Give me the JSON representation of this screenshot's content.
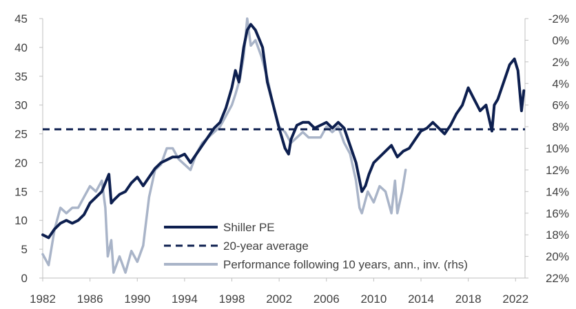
{
  "chart_data": {
    "type": "line",
    "title": "",
    "xlabel": "",
    "ylabel": "",
    "y2label": "",
    "xlim": [
      1982,
      2022.8
    ],
    "ylim": [
      0,
      45
    ],
    "y2lim": [
      -2,
      22
    ],
    "y2_inverted": true,
    "x_ticks": [
      "1982",
      "1986",
      "1990",
      "1994",
      "1998",
      "2002",
      "2006",
      "2010",
      "2014",
      "2018",
      "2022"
    ],
    "y_ticks": [
      "0",
      "5",
      "10",
      "15",
      "20",
      "25",
      "30",
      "35",
      "40",
      "45"
    ],
    "y2_ticks": [
      "-2%",
      "0%",
      "2%",
      "4%",
      "6%",
      "8%",
      "10%",
      "12%",
      "14%",
      "16%",
      "18%",
      "20%",
      "22%"
    ],
    "grid": false,
    "legend_position": "bottom-center",
    "series": [
      {
        "name": "Shiller PE",
        "axis": "left",
        "style": "solid",
        "color": "#0d1f4f",
        "x": [
          1982.0,
          1982.5,
          1983.0,
          1983.5,
          1984.0,
          1984.5,
          1985.0,
          1985.5,
          1986.0,
          1986.5,
          1987.0,
          1987.3,
          1987.6,
          1987.8,
          1988.0,
          1988.5,
          1989.0,
          1989.5,
          1990.0,
          1990.5,
          1991.0,
          1991.5,
          1992.0,
          1992.5,
          1993.0,
          1993.5,
          1994.0,
          1994.5,
          1995.0,
          1995.5,
          1996.0,
          1996.5,
          1997.0,
          1997.5,
          1998.0,
          1998.3,
          1998.6,
          1999.0,
          1999.3,
          1999.6,
          2000.0,
          2000.3,
          2000.6,
          2001.0,
          2001.5,
          2002.0,
          2002.5,
          2002.8,
          2003.0,
          2003.5,
          2004.0,
          2004.5,
          2005.0,
          2005.5,
          2006.0,
          2006.5,
          2007.0,
          2007.5,
          2008.0,
          2008.5,
          2009.0,
          2009.3,
          2009.6,
          2010.0,
          2010.5,
          2011.0,
          2011.5,
          2012.0,
          2012.5,
          2013.0,
          2013.5,
          2014.0,
          2014.5,
          2015.0,
          2015.5,
          2016.0,
          2016.5,
          2017.0,
          2017.5,
          2018.0,
          2018.5,
          2019.0,
          2019.5,
          2020.0,
          2020.2,
          2020.5,
          2021.0,
          2021.5,
          2021.9,
          2022.2,
          2022.5,
          2022.7
        ],
        "values": [
          7.5,
          7.0,
          8.5,
          9.5,
          10.0,
          9.5,
          10.0,
          11.0,
          13.0,
          14.0,
          15.0,
          16.5,
          18.0,
          13.0,
          13.5,
          14.5,
          15.0,
          16.5,
          17.5,
          16.0,
          17.5,
          19.0,
          20.0,
          20.5,
          21.0,
          21.0,
          21.5,
          20.0,
          21.5,
          23.0,
          24.5,
          26.0,
          27.0,
          29.5,
          33.0,
          36.0,
          34.0,
          40.0,
          43.0,
          44.0,
          43.0,
          41.5,
          40.0,
          34.0,
          30.0,
          26.0,
          22.5,
          21.5,
          24.0,
          26.5,
          27.0,
          27.0,
          26.0,
          26.5,
          27.0,
          26.0,
          27.0,
          26.0,
          23.0,
          20.0,
          15.0,
          16.0,
          18.0,
          20.0,
          21.0,
          22.0,
          23.0,
          21.0,
          22.0,
          22.5,
          24.0,
          25.5,
          26.0,
          27.0,
          26.0,
          25.0,
          26.5,
          28.5,
          30.0,
          33.0,
          31.0,
          29.0,
          30.0,
          25.5,
          30.0,
          31.0,
          34.0,
          37.0,
          38.0,
          36.0,
          29.0,
          32.5
        ]
      },
      {
        "name": "20-year average",
        "axis": "left",
        "style": "dashed",
        "color": "#0d1f4f",
        "x": [
          1982.0,
          2022.8
        ],
        "values": [
          25.8,
          25.8
        ]
      },
      {
        "name": "Performance following 10 years, ann., inv. (rhs)",
        "axis": "right",
        "style": "solid",
        "color": "#a9b4c8",
        "x": [
          1982.0,
          1982.5,
          1983.0,
          1983.5,
          1984.0,
          1984.5,
          1985.0,
          1985.5,
          1986.0,
          1986.5,
          1987.0,
          1987.3,
          1987.5,
          1987.8,
          1988.0,
          1988.5,
          1989.0,
          1989.5,
          1990.0,
          1990.5,
          1991.0,
          1991.5,
          1992.0,
          1992.5,
          1993.0,
          1993.5,
          1994.0,
          1994.5,
          1995.0,
          1995.5,
          1996.0,
          1996.5,
          1997.0,
          1997.5,
          1998.0,
          1998.3,
          1998.7,
          1999.0,
          1999.3,
          1999.6,
          2000.0,
          2000.5,
          2001.0,
          2001.5,
          2002.0,
          2002.5,
          2003.0,
          2003.5,
          2004.0,
          2004.5,
          2005.0,
          2005.5,
          2006.0,
          2006.5,
          2007.0,
          2007.5,
          2008.0,
          2008.5,
          2008.8,
          2009.0,
          2009.5,
          2010.0,
          2010.5,
          2011.0,
          2011.5,
          2011.8,
          2012.0,
          2012.4,
          2012.7
        ],
        "values": [
          19.8,
          20.8,
          17.5,
          15.5,
          16.0,
          15.5,
          15.5,
          14.5,
          13.5,
          14.0,
          13.0,
          15.5,
          20.0,
          18.5,
          21.5,
          20.0,
          21.5,
          19.5,
          20.5,
          19.0,
          14.5,
          12.0,
          11.5,
          10.0,
          10.0,
          11.0,
          11.5,
          12.0,
          10.5,
          9.5,
          9.0,
          8.5,
          8.0,
          7.0,
          6.0,
          5.0,
          3.5,
          1.5,
          -2.0,
          0.5,
          0.0,
          1.5,
          3.5,
          6.0,
          8.0,
          8.5,
          9.5,
          9.0,
          8.5,
          9.0,
          9.0,
          9.0,
          8.0,
          8.5,
          8.0,
          9.5,
          10.5,
          13.0,
          15.5,
          16.0,
          14.0,
          15.0,
          13.5,
          14.0,
          16.0,
          13.0,
          16.0,
          14.0,
          12.0
        ]
      }
    ]
  }
}
